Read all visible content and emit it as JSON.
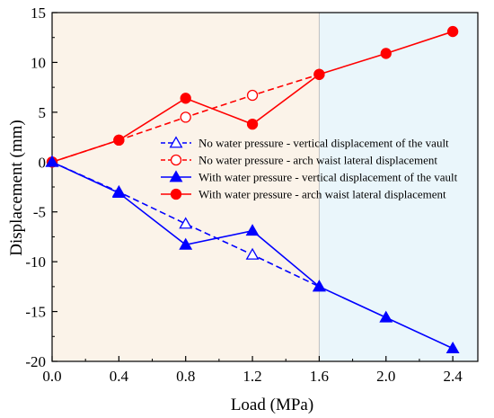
{
  "chart_data": {
    "type": "line",
    "xlabel": "Load (MPa)",
    "ylabel": "Displacement (mm)",
    "xlim": [
      0.0,
      2.55
    ],
    "ylim": [
      -20,
      15
    ],
    "x_ticks": [
      0.0,
      0.4,
      0.8,
      1.2,
      1.6,
      2.0,
      2.4
    ],
    "x_tick_labels": [
      "0.0",
      "0.4",
      "0.8",
      "1.2",
      "1.6",
      "2.0",
      "2.4"
    ],
    "y_ticks": [
      -20,
      -15,
      -10,
      -5,
      0,
      5,
      10,
      15
    ],
    "y_tick_labels": [
      "-20",
      "-15",
      "-10",
      "-5",
      "0",
      "5",
      "10",
      "15"
    ],
    "background_regions": [
      {
        "x_from": 0.0,
        "x_to": 1.6,
        "color": "#fbf3e9"
      },
      {
        "x_from": 1.6,
        "x_to": 2.55,
        "color": "#eaf6fb"
      }
    ],
    "legend_position": "center-right",
    "series": [
      {
        "name": "No water pressure - vertical displacement of the vault",
        "color": "#0000ff",
        "line_style": "dashed",
        "marker": "triangle",
        "filled": false,
        "x": [
          0.0,
          0.4,
          0.8,
          1.2,
          1.6
        ],
        "y": [
          0.0,
          -3.0,
          -6.2,
          -9.3,
          -12.5
        ]
      },
      {
        "name": "No water pressure - arch waist lateral displacement",
        "color": "#ff0000",
        "line_style": "dashed",
        "marker": "circle",
        "filled": false,
        "x": [
          0.0,
          0.4,
          0.8,
          1.2,
          1.6
        ],
        "y": [
          0.0,
          2.2,
          4.5,
          6.7,
          8.8
        ]
      },
      {
        "name": "With water pressure - vertical displacement of the vault",
        "color": "#0000ff",
        "line_style": "solid",
        "marker": "triangle",
        "filled": true,
        "x": [
          0.0,
          0.4,
          0.8,
          1.2,
          1.6,
          2.0,
          2.4
        ],
        "y": [
          0.0,
          -3.1,
          -8.3,
          -6.9,
          -12.5,
          -15.6,
          -18.7
        ]
      },
      {
        "name": "With water pressure - arch waist lateral displacement",
        "color": "#ff0000",
        "line_style": "solid",
        "marker": "circle",
        "filled": true,
        "x": [
          0.0,
          0.4,
          0.8,
          1.2,
          1.6,
          2.0,
          2.4
        ],
        "y": [
          0.0,
          2.2,
          6.4,
          3.8,
          8.8,
          10.9,
          13.1
        ]
      }
    ]
  }
}
